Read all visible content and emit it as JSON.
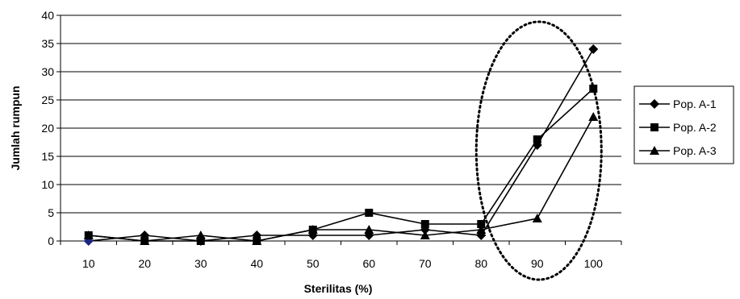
{
  "chart_data": {
    "type": "line",
    "title": "",
    "xlabel": "Sterilitas (%)",
    "ylabel": "Jumlah rumpun",
    "categories": [
      "10",
      "20",
      "30",
      "40",
      "50",
      "60",
      "70",
      "80",
      "90",
      "100"
    ],
    "x": [
      10,
      20,
      30,
      40,
      50,
      60,
      70,
      80,
      90,
      100
    ],
    "ylim": [
      0,
      40
    ],
    "yticks": [
      0,
      5,
      10,
      15,
      20,
      25,
      30,
      35,
      40
    ],
    "grid": "horizontal",
    "legend_position": "right",
    "series": [
      {
        "name": "Pop. A-1",
        "marker": "diamond",
        "values": [
          0,
          1,
          0,
          1,
          1,
          1,
          2,
          1,
          17,
          34
        ]
      },
      {
        "name": "Pop. A-2",
        "marker": "square",
        "values": [
          1,
          0,
          0,
          0,
          2,
          5,
          3,
          3,
          18,
          27
        ]
      },
      {
        "name": "Pop. A-3",
        "marker": "triangle",
        "values": [
          1,
          0,
          1,
          0,
          2,
          2,
          1,
          2,
          4,
          22
        ]
      }
    ],
    "annotations": [
      {
        "type": "dotted-ellipse",
        "around_x": [
          80,
          100
        ]
      }
    ]
  },
  "colors": {
    "line": "#000000",
    "marker": "#000000",
    "grid": "#000000",
    "first_marker": "#1a237e"
  }
}
